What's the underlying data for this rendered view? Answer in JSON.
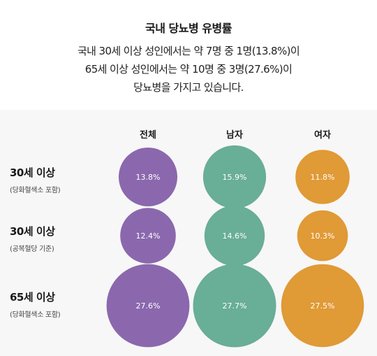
{
  "header": {
    "title": "국내 당뇨병 유병률",
    "lines": [
      "국내 30세 이상 성인에서는 약 7명 중 1명(13.8%)이",
      "65세 이상 성인에서는 약 10명 중 3명(27.6%)이",
      "당뇨병을 가지고 있습니다."
    ]
  },
  "chart_data": {
    "type": "bubble",
    "categories": [
      "전체",
      "남자",
      "여자"
    ],
    "rows": [
      {
        "label": "30세 이상",
        "sublabel": "(당화혈색소 포함)",
        "values": [
          13.8,
          15.9,
          11.8
        ],
        "value_labels": [
          "13.8%",
          "15.9%",
          "11.8%"
        ]
      },
      {
        "label": "30세 이상",
        "sublabel": "(공복혈당 기준)",
        "values": [
          12.4,
          14.6,
          10.3
        ],
        "value_labels": [
          "12.4%",
          "14.6%",
          "10.3%"
        ]
      },
      {
        "label": "65세 이상",
        "sublabel": "(당화혈색소 포함)",
        "values": [
          27.6,
          27.7,
          27.5
        ],
        "value_labels": [
          "27.6%",
          "27.7%",
          "27.5%"
        ]
      }
    ],
    "colors": [
      "#8b68ad",
      "#69ae96",
      "#e09a36"
    ]
  }
}
